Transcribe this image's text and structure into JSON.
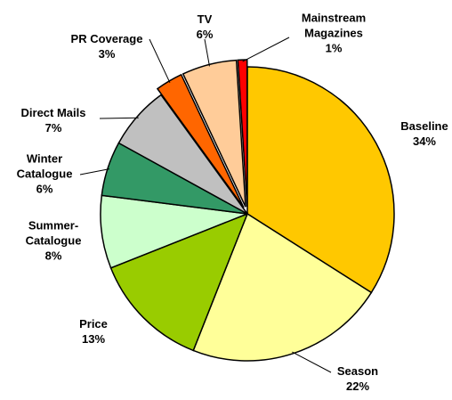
{
  "chart_data": {
    "type": "pie",
    "categories": [
      "Baseline",
      "Season",
      "Price",
      "Summer-Catalogue",
      "Winter Catalogue",
      "Direct Mails",
      "PR Coverage",
      "TV",
      "Mainstream Magazines"
    ],
    "values": [
      34,
      22,
      13,
      8,
      6,
      7,
      3,
      6,
      1
    ],
    "value_labels": [
      "34%",
      "22%",
      "13%",
      "8%",
      "6%",
      "7%",
      "3%",
      "6%",
      "1%"
    ],
    "colors": [
      "#FFC800",
      "#FFFF99",
      "#99CC00",
      "#CCFFCC",
      "#339966",
      "#C0C0C0",
      "#FF6600",
      "#FFCC99",
      "#FF0000"
    ]
  }
}
